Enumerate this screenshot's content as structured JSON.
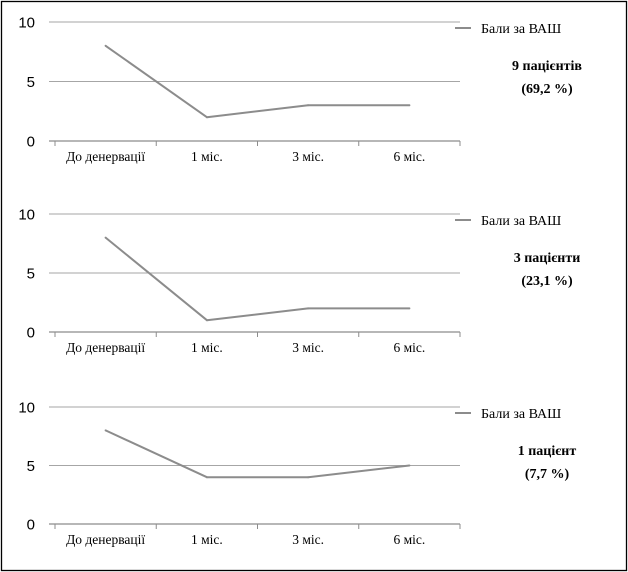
{
  "chart_data": [
    {
      "type": "line",
      "categories": [
        "До денервації",
        "1 міс.",
        "3 міс.",
        "6 міс."
      ],
      "series": [
        {
          "name": "Бали за ВАШ",
          "values": [
            8,
            2,
            3,
            3
          ]
        }
      ],
      "ylim": [
        0,
        10
      ],
      "yticks": [
        "0",
        "5",
        "10"
      ],
      "grid": true,
      "legend": "right",
      "annotation": [
        "9 пацієнтів",
        "(69,2 %)"
      ]
    },
    {
      "type": "line",
      "categories": [
        "До денервації",
        "1 міс.",
        "3 міс.",
        "6 міс."
      ],
      "series": [
        {
          "name": "Бали за ВАШ",
          "values": [
            8,
            1,
            2,
            2
          ]
        }
      ],
      "ylim": [
        0,
        10
      ],
      "yticks": [
        "0",
        "5",
        "10"
      ],
      "grid": true,
      "legend": "right",
      "annotation": [
        "3 пацієнти",
        "(23,1 %)"
      ]
    },
    {
      "type": "line",
      "categories": [
        "До денервації",
        "1 міс.",
        "3 міс.",
        "6 міс."
      ],
      "series": [
        {
          "name": "Бали за ВАШ",
          "values": [
            8,
            4,
            4,
            5
          ]
        }
      ],
      "ylim": [
        0,
        10
      ],
      "yticks": [
        "0",
        "5",
        "10"
      ],
      "grid": true,
      "legend": "right",
      "annotation": [
        "1 пацієнт",
        "(7,7 %)"
      ]
    }
  ],
  "colors": {
    "line": "#8c8c8c",
    "grid": "#a6a6a6",
    "axis": "#8c8c8c",
    "frame": "#000000"
  }
}
